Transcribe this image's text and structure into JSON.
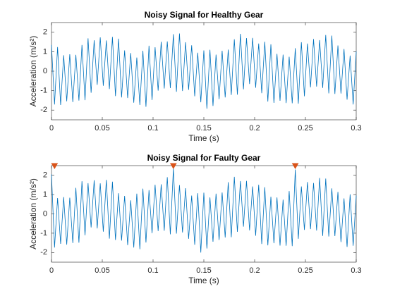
{
  "chart_data": [
    {
      "type": "line",
      "title": "Noisy Signal for Healthy Gear",
      "xlabel": "Time (s)",
      "ylabel": "Acceleration (m/s²)",
      "x": [
        0,
        0.003,
        0.006,
        0.009,
        0.012,
        0.015,
        0.018,
        0.021,
        0.024,
        0.027,
        0.03,
        0.033,
        0.036,
        0.039,
        0.042,
        0.045,
        0.048,
        0.051,
        0.054,
        0.057,
        0.06,
        0.063,
        0.066,
        0.069,
        0.072,
        0.075,
        0.078,
        0.081,
        0.084,
        0.087,
        0.09,
        0.093,
        0.096,
        0.099,
        0.102,
        0.105,
        0.108,
        0.111,
        0.114,
        0.117,
        0.12,
        0.123,
        0.126,
        0.129,
        0.132,
        0.135,
        0.138,
        0.141,
        0.144,
        0.147,
        0.15,
        0.153,
        0.156,
        0.159,
        0.162,
        0.165,
        0.168,
        0.171,
        0.174,
        0.177,
        0.18,
        0.183,
        0.186,
        0.189,
        0.192,
        0.195,
        0.198,
        0.201,
        0.204,
        0.207,
        0.21,
        0.213,
        0.216,
        0.219,
        0.222,
        0.225,
        0.228,
        0.231,
        0.234,
        0.237,
        0.24,
        0.243,
        0.246,
        0.249,
        0.252,
        0.255,
        0.258,
        0.261,
        0.264,
        0.267,
        0.27,
        0.273,
        0.276,
        0.279,
        0.282,
        0.285,
        0.288,
        0.291,
        0.294,
        0.297,
        0.3
      ],
      "series": [
        {
          "color": "#0072BD",
          "values": [
            1.35,
            -1.71,
            1.24,
            -1.74,
            0.82,
            -1.55,
            0.87,
            -1.59,
            0.84,
            -1.51,
            1.35,
            -1.49,
            1.69,
            -1.11,
            1.59,
            -0.7,
            1.74,
            -0.75,
            1.58,
            -0.92,
            1.76,
            -1.28,
            1.67,
            -1.35,
            1.07,
            -1.38,
            0.93,
            -1.62,
            0.7,
            -1.74,
            1.05,
            -1.83,
            1.31,
            -1.48,
            1.23,
            -1.0,
            1.51,
            -0.89,
            1.53,
            -0.87,
            1.9,
            -1.06,
            1.94,
            -1.02,
            1.49,
            -0.96,
            1.33,
            -1.29,
            0.95,
            -1.6,
            1.07,
            -1.93,
            1.1,
            -1.79,
            0.85,
            -1.44,
            1.05,
            -1.35,
            1.11,
            -1.22,
            1.64,
            -1.21,
            1.92,
            -0.93,
            1.7,
            -0.66,
            1.71,
            -0.85,
            1.42,
            -1.13,
            1.51,
            -1.56,
            1.38,
            -1.63,
            0.89,
            -1.52,
            0.85,
            -1.64,
            0.74,
            -1.65,
            1.18,
            -1.67,
            1.49,
            -1.29,
            1.42,
            -0.83,
            1.65,
            -0.79,
            1.6,
            -0.86,
            1.86,
            -1.14,
            1.83,
            -1.17,
            1.32,
            -1.15,
            1.14,
            -1.46,
            0.8,
            -1.71,
            1.01
          ]
        }
      ],
      "xlim": [
        0,
        0.3
      ],
      "xticks": [
        0,
        0.05,
        0.1,
        0.15,
        0.2,
        0.25,
        0.3
      ],
      "ylim": [
        -2.5,
        2.5
      ],
      "yticks": [
        -2,
        -1,
        0,
        1,
        2
      ]
    },
    {
      "type": "line",
      "title": "Noisy Signal for Faulty Gear",
      "xlabel": "Time (s)",
      "ylabel": "Acceleration (m/s²)",
      "x": [
        0,
        0.003,
        0.006,
        0.009,
        0.012,
        0.015,
        0.018,
        0.021,
        0.024,
        0.027,
        0.03,
        0.033,
        0.036,
        0.039,
        0.042,
        0.045,
        0.048,
        0.051,
        0.054,
        0.057,
        0.06,
        0.063,
        0.066,
        0.069,
        0.072,
        0.075,
        0.078,
        0.081,
        0.084,
        0.087,
        0.09,
        0.093,
        0.096,
        0.099,
        0.102,
        0.105,
        0.108,
        0.111,
        0.114,
        0.117,
        0.12,
        0.123,
        0.126,
        0.129,
        0.132,
        0.135,
        0.138,
        0.141,
        0.144,
        0.147,
        0.15,
        0.153,
        0.156,
        0.159,
        0.162,
        0.165,
        0.168,
        0.171,
        0.174,
        0.177,
        0.18,
        0.183,
        0.186,
        0.189,
        0.192,
        0.195,
        0.198,
        0.201,
        0.204,
        0.207,
        0.21,
        0.213,
        0.216,
        0.219,
        0.222,
        0.225,
        0.228,
        0.231,
        0.234,
        0.237,
        0.24,
        0.243,
        0.246,
        0.249,
        0.252,
        0.255,
        0.258,
        0.261,
        0.264,
        0.267,
        0.27,
        0.273,
        0.276,
        0.279,
        0.282,
        0.285,
        0.288,
        0.291,
        0.294,
        0.297,
        0.3
      ],
      "series": [
        {
          "color": "#0072BD",
          "values": [
            2.05,
            -1.74,
            0.82,
            -1.55,
            0.87,
            -1.59,
            0.84,
            -1.51,
            1.35,
            -1.49,
            1.69,
            -1.11,
            1.59,
            -0.7,
            1.74,
            -0.75,
            1.58,
            -0.92,
            1.76,
            -1.28,
            1.67,
            -1.35,
            1.07,
            -1.38,
            0.93,
            -1.62,
            0.7,
            -1.74,
            1.05,
            -1.83,
            1.31,
            -1.48,
            1.23,
            -1.0,
            1.51,
            -0.89,
            1.53,
            -0.87,
            1.9,
            -1.06,
            2.35,
            -1.02,
            1.49,
            -0.96,
            1.33,
            -1.29,
            0.95,
            -1.6,
            1.07,
            -2.0,
            1.1,
            -1.79,
            0.85,
            -1.44,
            1.05,
            -1.35,
            1.11,
            -1.22,
            1.64,
            -1.21,
            1.92,
            -0.93,
            1.7,
            -0.66,
            1.71,
            -0.85,
            1.42,
            -1.13,
            1.51,
            -1.56,
            1.38,
            -1.63,
            0.89,
            -1.52,
            0.85,
            -1.64,
            0.74,
            -1.65,
            1.18,
            -1.67,
            2.3,
            -1.29,
            1.42,
            -0.83,
            1.65,
            -0.79,
            1.6,
            -0.86,
            1.86,
            -1.14,
            1.83,
            -1.17,
            1.32,
            -1.15,
            1.14,
            -1.46,
            0.8,
            -1.71,
            1.01,
            -1.65,
            0.95
          ]
        }
      ],
      "markers": {
        "color": "#D95319",
        "x": [
          0.003,
          0.12,
          0.24
        ],
        "y": [
          2.5,
          2.5,
          2.5
        ]
      },
      "xlim": [
        0,
        0.3
      ],
      "xticks": [
        0,
        0.05,
        0.1,
        0.15,
        0.2,
        0.25,
        0.3
      ],
      "ylim": [
        -2.5,
        2.5
      ],
      "yticks": [
        -2,
        -1,
        0,
        1,
        2
      ]
    }
  ]
}
